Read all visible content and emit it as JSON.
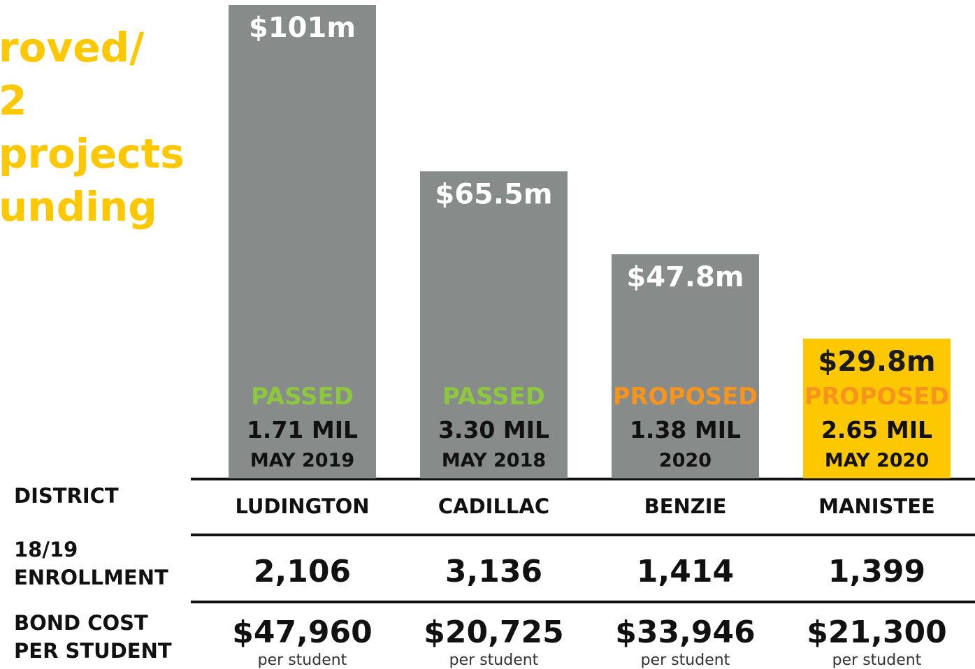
{
  "chart_data": {
    "type": "bar",
    "title_lines": [
      "roved/",
      "2",
      "projects",
      "unding"
    ],
    "categories": [
      "LUDINGTON",
      "CADILLAC",
      "BENZIE",
      "MANISTEE"
    ],
    "values": [
      101,
      65.5,
      47.8,
      29.8
    ],
    "value_labels": [
      "$101m",
      "$65.5m",
      "$47.8m",
      "$29.8m"
    ],
    "colors": [
      "#878b8a",
      "#878b8a",
      "#878b8a",
      "#fdc800"
    ],
    "value_label_colors": [
      "#ffffff",
      "#ffffff",
      "#ffffff",
      "#1a1a1a"
    ],
    "ylim": [
      0,
      101
    ],
    "status": [
      "PASSED",
      "PASSED",
      "PROPOSED",
      "PROPOSED"
    ],
    "status_colors": [
      "#8dc63f",
      "#8dc63f",
      "#f7941d",
      "#f7941d"
    ],
    "millage": [
      "1.71 MIL",
      "3.30 MIL",
      "1.38 MIL",
      "2.65 MIL"
    ],
    "dates": [
      "MAY 2019",
      "MAY 2018",
      "2020",
      "MAY 2020"
    ]
  },
  "table": {
    "row_labels": [
      [
        "DISTRICT"
      ],
      [
        "18/19",
        "ENROLLMENT"
      ],
      [
        "BOND COST",
        "PER STUDENT"
      ]
    ],
    "enrollment": [
      "2,106",
      "3,136",
      "1,414",
      "1,399"
    ],
    "cost": [
      "$47,960",
      "$20,725",
      "$33,946",
      "$21,300"
    ],
    "cost_unit": "per student"
  }
}
